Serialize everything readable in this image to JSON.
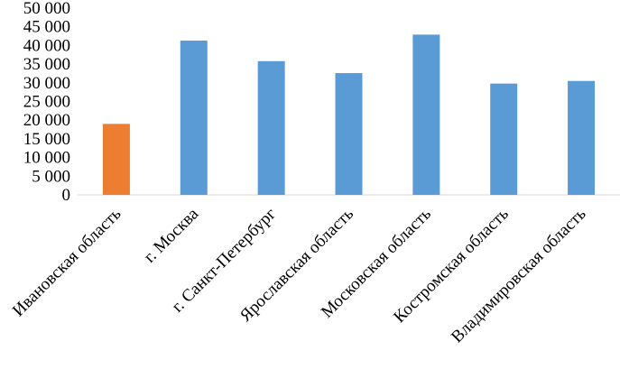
{
  "chart_data": {
    "type": "bar",
    "categories": [
      "Ивановская область",
      "г. Москва",
      "г. Санкт-Петербург",
      "Ярославская область",
      "Московская область",
      "Костромская область",
      "Владимировская область"
    ],
    "values": [
      19000,
      41300,
      35800,
      32600,
      42900,
      29800,
      30500
    ],
    "highlight_index": 0,
    "colors": {
      "bar": "#5b9bd5",
      "highlight": "#ed7d31"
    },
    "ylim": [
      0,
      50000
    ],
    "yticks": [
      0,
      5000,
      10000,
      15000,
      20000,
      25000,
      30000,
      35000,
      40000,
      45000,
      50000
    ],
    "ytick_labels": [
      "0",
      "5 000",
      "10 000",
      "15 000",
      "20 000",
      "25 000",
      "30 000",
      "35 000",
      "40 000",
      "45 000",
      "50 000"
    ],
    "grid": false,
    "legend": "none",
    "title": "",
    "xlabel": "",
    "ylabel": ""
  }
}
